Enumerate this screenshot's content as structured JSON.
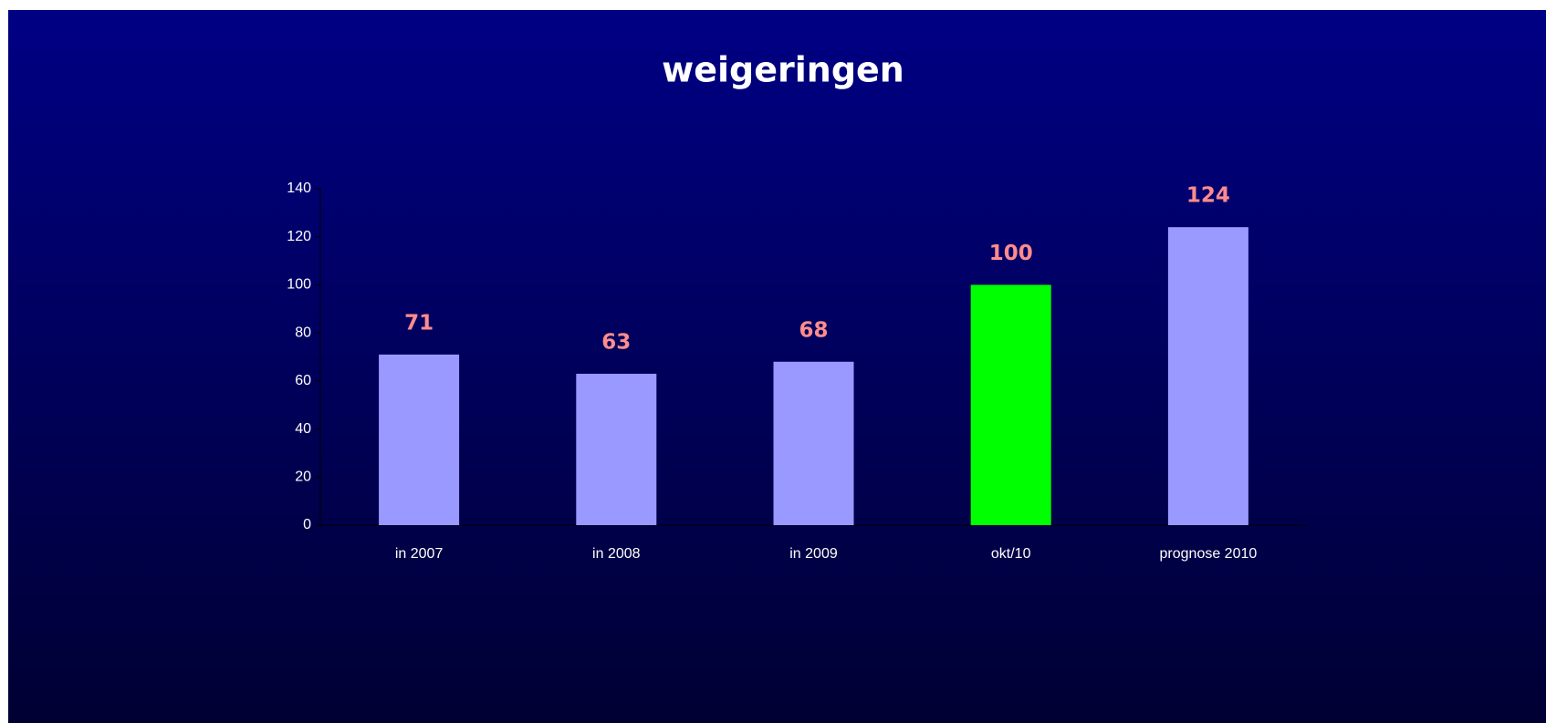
{
  "chart_data": {
    "type": "bar",
    "title": "weigeringen",
    "categories": [
      "in 2007",
      "in 2008",
      "in 2009",
      "okt/10",
      "prognose 2010"
    ],
    "values": [
      71,
      63,
      68,
      100,
      124
    ],
    "colors": [
      "#9999ff",
      "#9999ff",
      "#9999ff",
      "#00ff00",
      "#9999ff"
    ],
    "ylim": [
      0,
      140
    ],
    "yticks": [
      0,
      20,
      40,
      60,
      80,
      100,
      120,
      140
    ],
    "grid": false
  }
}
